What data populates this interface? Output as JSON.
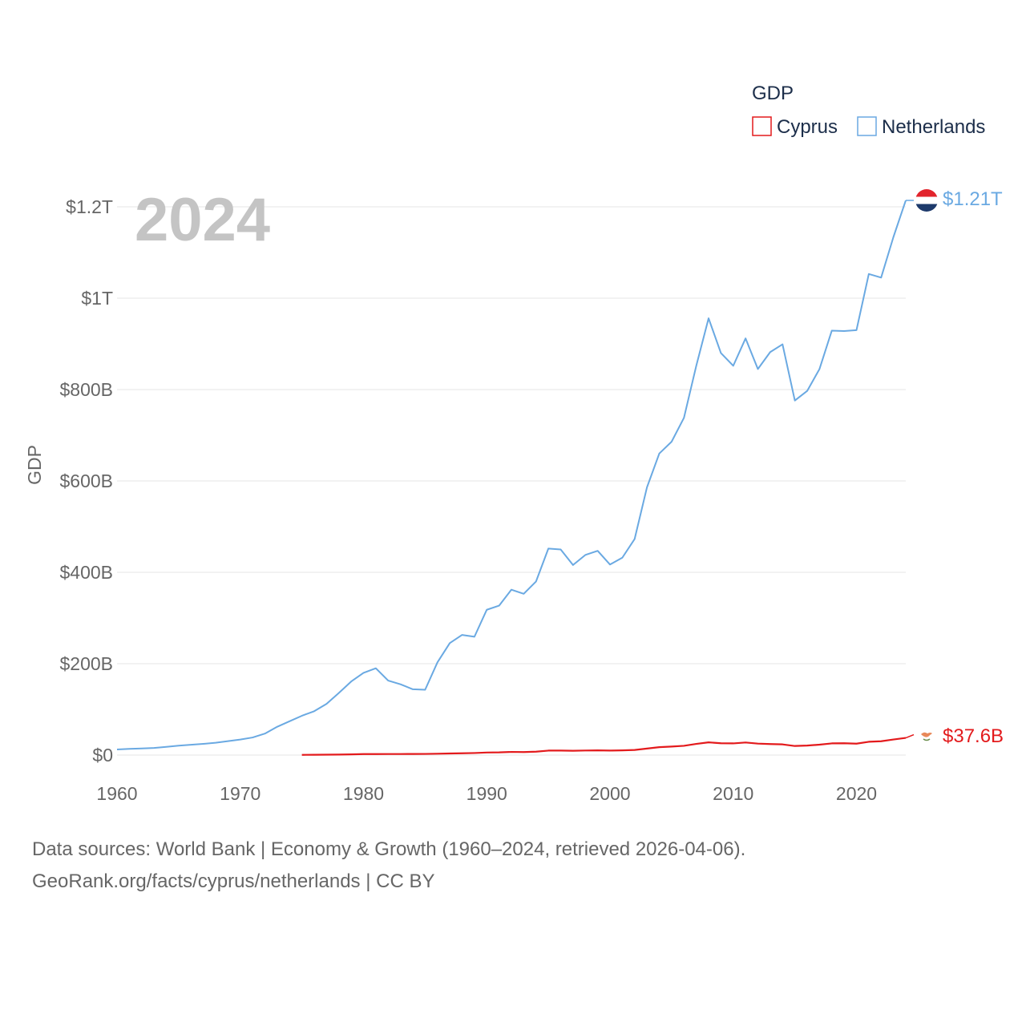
{
  "chart_data": {
    "type": "line",
    "title": "GDP",
    "year_label": "2024",
    "xlabel": "",
    "ylabel": "GDP",
    "xlim": [
      1960,
      2024
    ],
    "ylim": [
      0,
      1200000000000
    ],
    "x_ticks": [
      1960,
      1970,
      1980,
      1990,
      2000,
      2010,
      2020
    ],
    "y_ticks": [
      {
        "value": 0,
        "label": "$0"
      },
      {
        "value": 200000000000,
        "label": "$200B"
      },
      {
        "value": 400000000000,
        "label": "$400B"
      },
      {
        "value": 600000000000,
        "label": "$600B"
      },
      {
        "value": 800000000000,
        "label": "$800B"
      },
      {
        "value": 1000000000000,
        "label": "$1T"
      },
      {
        "value": 1200000000000,
        "label": "$1.2T"
      }
    ],
    "legend": {
      "title": "GDP",
      "placement": "top-right"
    },
    "series": [
      {
        "name": "Cyprus",
        "color": "#e31a1c",
        "end_label": "$37.6B",
        "icon": "cyprus-flag-icon",
        "points": [
          [
            1975,
            0.5
          ],
          [
            1976,
            0.7
          ],
          [
            1977,
            0.9
          ],
          [
            1978,
            1.1
          ],
          [
            1979,
            1.5
          ],
          [
            1980,
            2.2
          ],
          [
            1981,
            2.2
          ],
          [
            1982,
            2.3
          ],
          [
            1983,
            2.3
          ],
          [
            1984,
            2.4
          ],
          [
            1985,
            2.5
          ],
          [
            1986,
            3.0
          ],
          [
            1987,
            3.5
          ],
          [
            1988,
            4.0
          ],
          [
            1989,
            4.5
          ],
          [
            1990,
            5.6
          ],
          [
            1991,
            5.9
          ],
          [
            1992,
            6.9
          ],
          [
            1993,
            6.6
          ],
          [
            1994,
            7.5
          ],
          [
            1995,
            9.8
          ],
          [
            1996,
            9.9
          ],
          [
            1997,
            9.4
          ],
          [
            1998,
            10.0
          ],
          [
            1999,
            10.3
          ],
          [
            2000,
            9.9
          ],
          [
            2001,
            10.3
          ],
          [
            2002,
            11.2
          ],
          [
            2003,
            14.3
          ],
          [
            2004,
            17.3
          ],
          [
            2005,
            18.7
          ],
          [
            2006,
            20.3
          ],
          [
            2007,
            24.4
          ],
          [
            2008,
            27.8
          ],
          [
            2009,
            25.9
          ],
          [
            2010,
            25.6
          ],
          [
            2011,
            27.5
          ],
          [
            2012,
            25.1
          ],
          [
            2013,
            24.1
          ],
          [
            2014,
            23.4
          ],
          [
            2015,
            19.9
          ],
          [
            2016,
            20.8
          ],
          [
            2017,
            22.8
          ],
          [
            2018,
            25.6
          ],
          [
            2019,
            25.9
          ],
          [
            2020,
            25.0
          ],
          [
            2021,
            29.1
          ],
          [
            2022,
            30.3
          ],
          [
            2023,
            34.1
          ],
          [
            2024,
            37.6
          ]
        ]
      },
      {
        "name": "Netherlands",
        "color": "#6aa9e2",
        "end_label": "$1.21T",
        "icon": "netherlands-flag-icon",
        "points": [
          [
            1960,
            12.3
          ],
          [
            1961,
            13.5
          ],
          [
            1962,
            14.5
          ],
          [
            1963,
            15.6
          ],
          [
            1964,
            18.0
          ],
          [
            1965,
            20.6
          ],
          [
            1966,
            22.5
          ],
          [
            1967,
            24.5
          ],
          [
            1968,
            27.0
          ],
          [
            1969,
            30.5
          ],
          [
            1970,
            34.0
          ],
          [
            1971,
            38.5
          ],
          [
            1972,
            47.0
          ],
          [
            1973,
            62.0
          ],
          [
            1974,
            74.0
          ],
          [
            1975,
            86.0
          ],
          [
            1976,
            96.0
          ],
          [
            1977,
            112.0
          ],
          [
            1978,
            136.0
          ],
          [
            1979,
            161.0
          ],
          [
            1980,
            180.0
          ],
          [
            1981,
            190.0
          ],
          [
            1982,
            163.0
          ],
          [
            1983,
            155.0
          ],
          [
            1984,
            144.0
          ],
          [
            1985,
            143.0
          ],
          [
            1986,
            203.0
          ],
          [
            1987,
            245.0
          ],
          [
            1988,
            263.0
          ],
          [
            1989,
            259.0
          ],
          [
            1990,
            318.0
          ],
          [
            1991,
            327.0
          ],
          [
            1992,
            362.0
          ],
          [
            1993,
            353.0
          ],
          [
            1994,
            380.0
          ],
          [
            1995,
            452.0
          ],
          [
            1996,
            450.0
          ],
          [
            1997,
            416.0
          ],
          [
            1998,
            438.0
          ],
          [
            1999,
            447.0
          ],
          [
            2000,
            417.0
          ],
          [
            2001,
            432.0
          ],
          [
            2002,
            473.0
          ],
          [
            2003,
            586.0
          ],
          [
            2004,
            660.0
          ],
          [
            2005,
            686.0
          ],
          [
            2006,
            738.0
          ],
          [
            2007,
            852.0
          ],
          [
            2008,
            956.0
          ],
          [
            2009,
            880.0
          ],
          [
            2010,
            852.0
          ],
          [
            2011,
            912.0
          ],
          [
            2012,
            845.0
          ],
          [
            2013,
            882.0
          ],
          [
            2014,
            899.0
          ],
          [
            2015,
            776.0
          ],
          [
            2016,
            797.0
          ],
          [
            2017,
            845.0
          ],
          [
            2018,
            929.0
          ],
          [
            2019,
            928.0
          ],
          [
            2020,
            930.0
          ],
          [
            2021,
            1053.0
          ],
          [
            2022,
            1045.0
          ],
          [
            2023,
            1134.0
          ],
          [
            2024,
            1214.0
          ]
        ]
      }
    ],
    "units_note": "point values in billions USD"
  },
  "footer": {
    "line1": "Data sources: World Bank | Economy & Growth (1960–2024, retrieved 2026-04-06).",
    "line2": "GeoRank.org/facts/cyprus/netherlands | CC BY"
  }
}
